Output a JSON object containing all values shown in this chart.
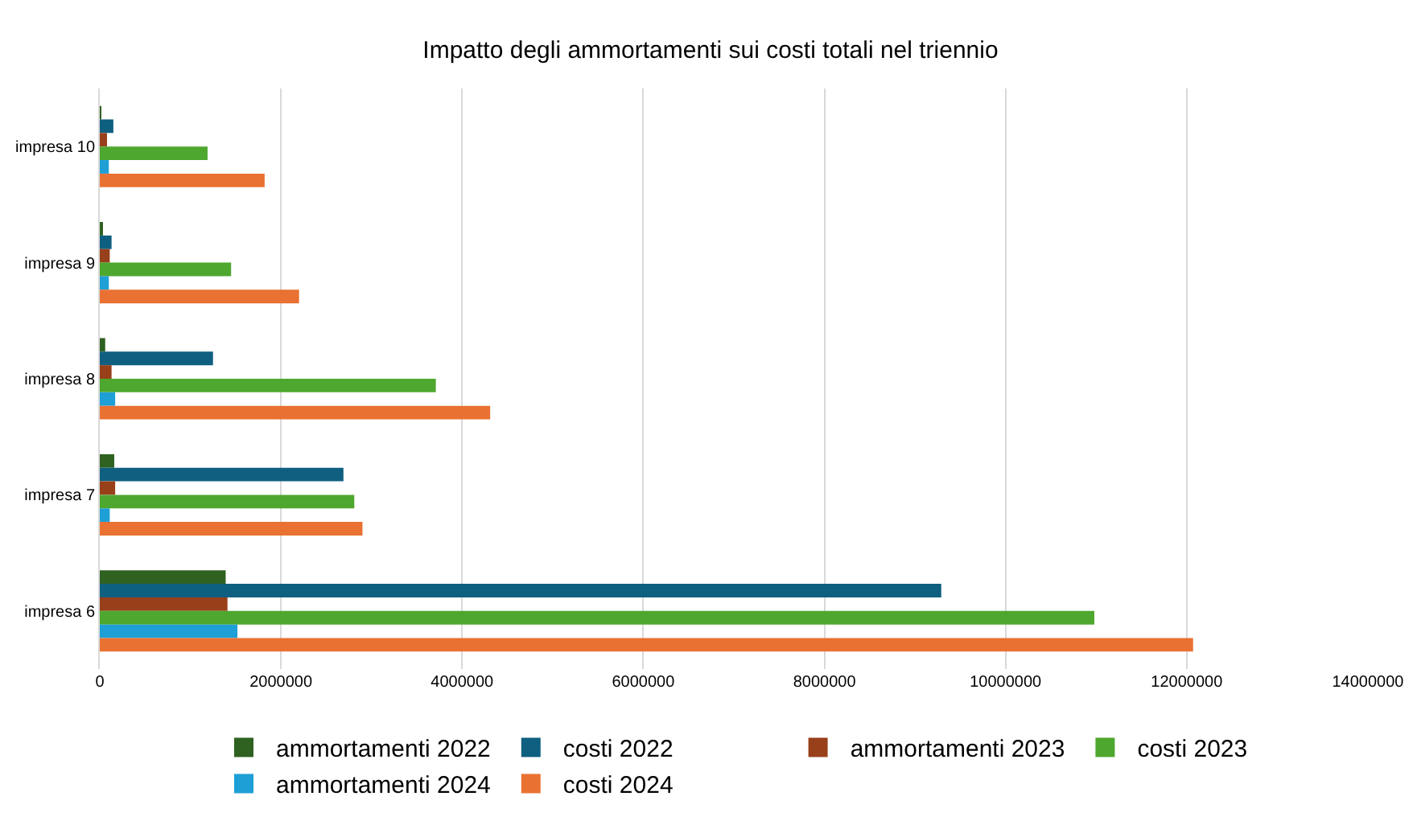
{
  "chart_data": {
    "type": "bar",
    "orientation": "horizontal",
    "title": "Impatto degli ammortamenti sui costi totali nel triennio",
    "categories": [
      "impresa 10",
      "impresa 9",
      "impresa 8",
      "impresa 7",
      "impresa 6"
    ],
    "series": [
      {
        "name": "ammortamenti 2022",
        "color": "#2f6121",
        "values": [
          10000,
          30000,
          60000,
          160000,
          1390000
        ]
      },
      {
        "name": "costi 2022",
        "color": "#0f5f80",
        "values": [
          150000,
          130000,
          1250000,
          2690000,
          9290000
        ]
      },
      {
        "name": "ammortamenti 2023",
        "color": "#98401a",
        "values": [
          80000,
          110000,
          130000,
          170000,
          1410000
        ]
      },
      {
        "name": "costi 2023",
        "color": "#4ea72e",
        "values": [
          1190000,
          1450000,
          3710000,
          2810000,
          10980000
        ]
      },
      {
        "name": "ammortamenti 2024",
        "color": "#1e9fd6",
        "values": [
          100000,
          100000,
          170000,
          110000,
          1520000
        ]
      },
      {
        "name": "costi 2024",
        "color": "#e97132",
        "values": [
          1820000,
          2200000,
          4310000,
          2900000,
          12070000
        ]
      }
    ],
    "xlim": [
      0,
      14000000
    ],
    "xticks": [
      0,
      2000000,
      4000000,
      6000000,
      8000000,
      10000000,
      12000000,
      14000000
    ],
    "grid": "x",
    "legend": "bottom"
  }
}
